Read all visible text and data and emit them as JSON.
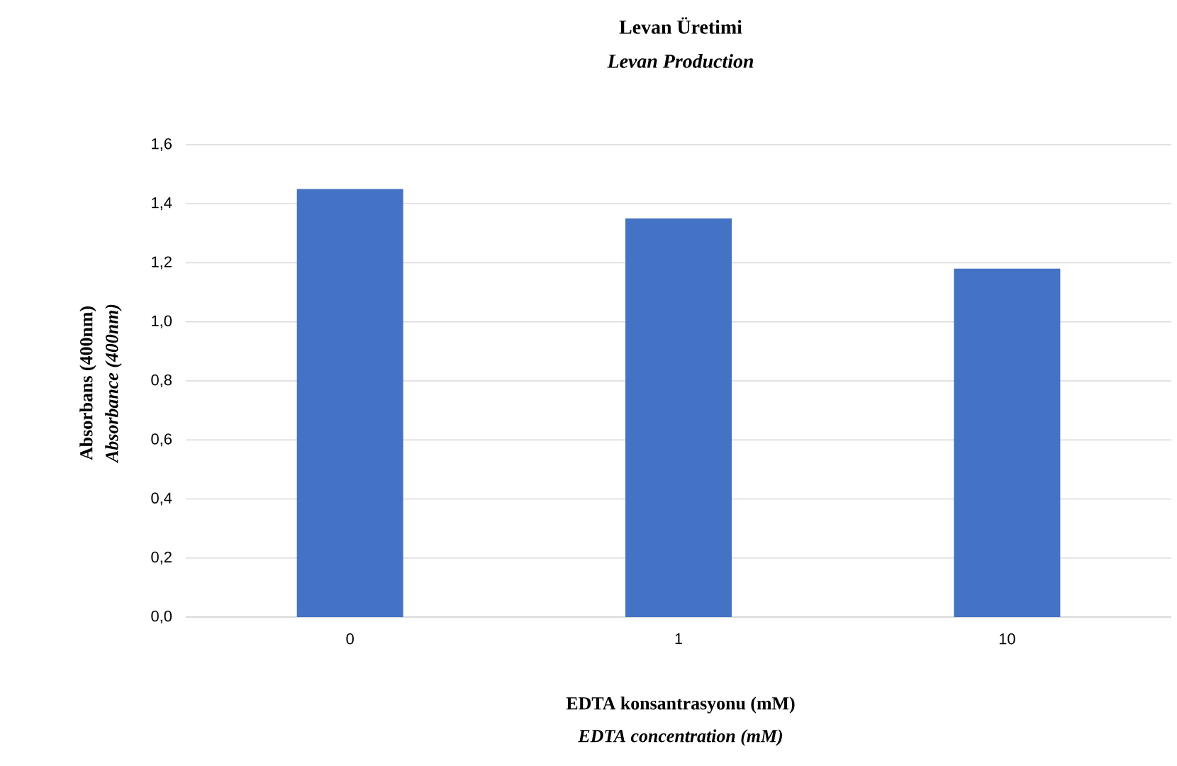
{
  "chart_data": {
    "type": "bar",
    "title": "Levan Üretimi",
    "subtitle": "Levan Production",
    "xlabel": "EDTA konsantrasyonu (mM)",
    "ylabel": "Absorbans (400nm)",
    "annotations": [
      "Absorbance (400nm)",
      "EDTA concentration (mM)"
    ],
    "categories": [
      "0",
      "1",
      "10"
    ],
    "values": [
      1.45,
      1.35,
      1.18
    ],
    "color": "#4472c4",
    "ylim": [
      0,
      1.6
    ],
    "yticks": [
      {
        "value": 0,
        "label": "0,0"
      },
      {
        "value": 0.2,
        "label": "0,2"
      },
      {
        "value": 0.4,
        "label": "0,4"
      },
      {
        "value": 0.6,
        "label": "0,6"
      },
      {
        "value": 0.8,
        "label": "0,8"
      },
      {
        "value": 1.0,
        "label": "1,0"
      },
      {
        "value": 1.2,
        "label": "1,2"
      },
      {
        "value": 1.4,
        "label": "1,4"
      },
      {
        "value": 1.6,
        "label": "1,6"
      }
    ],
    "grid": "y"
  }
}
